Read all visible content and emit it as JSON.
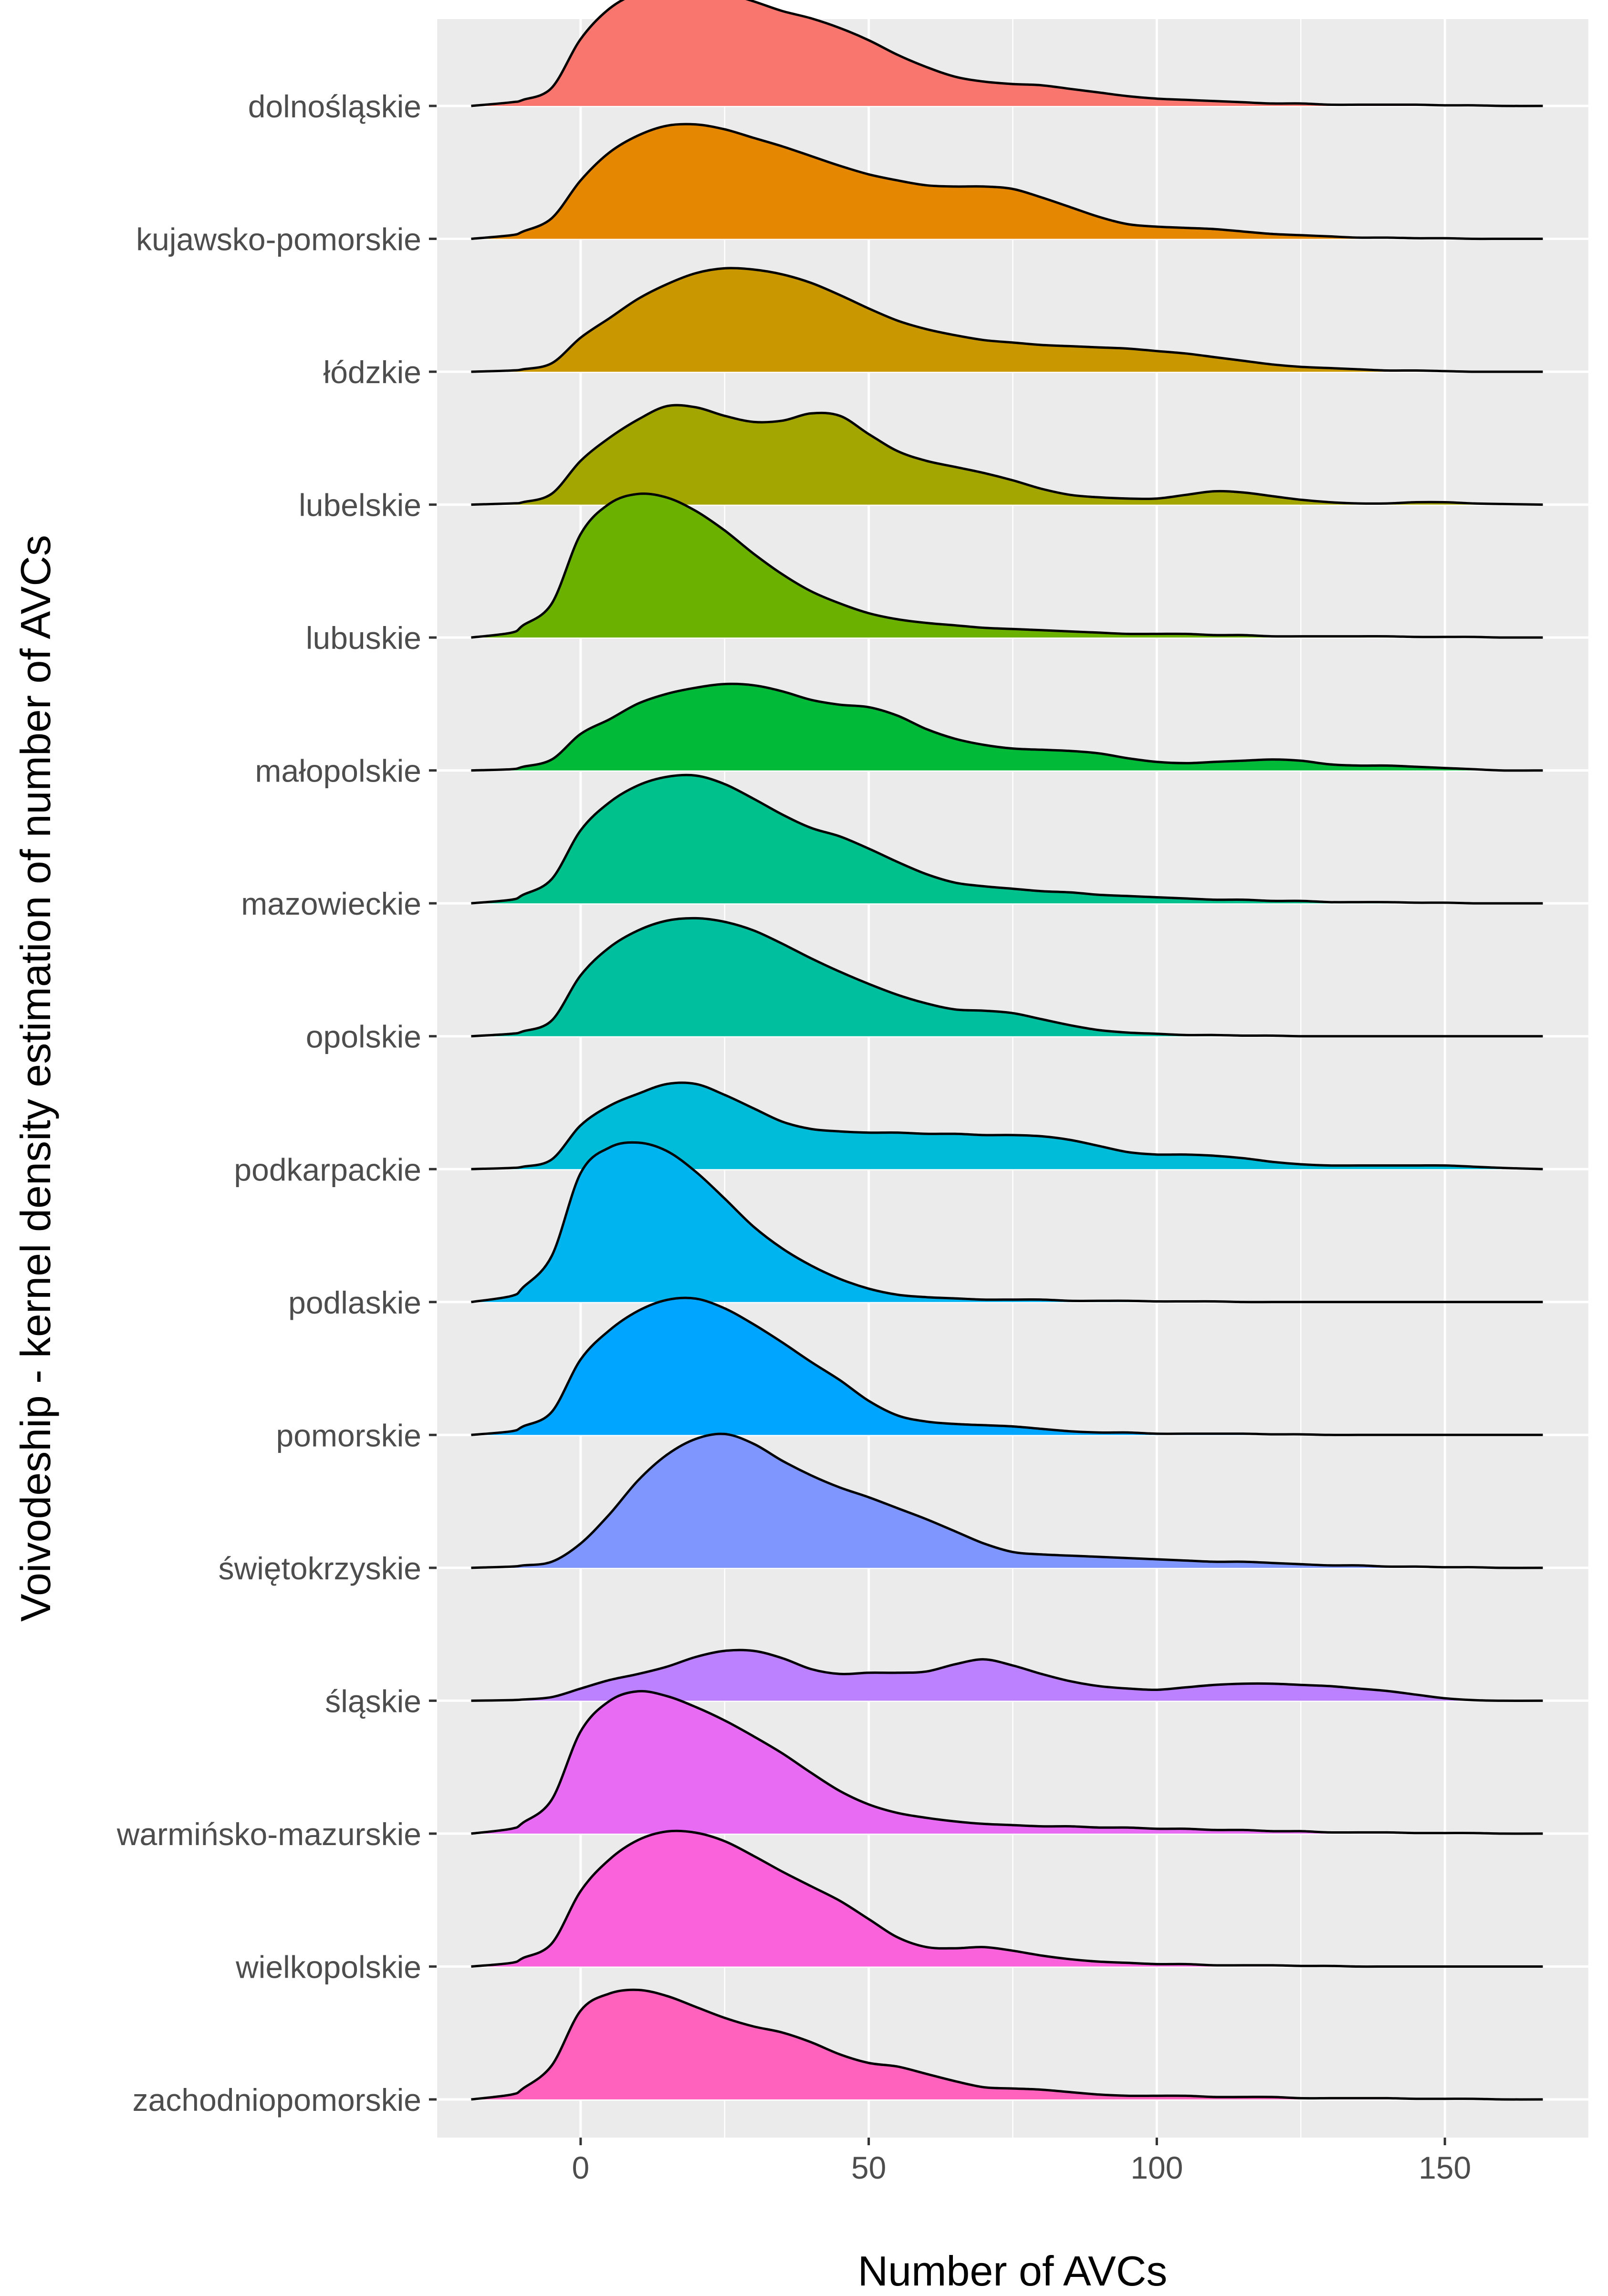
{
  "chart_data": {
    "type": "ridgeline",
    "title": "",
    "xlabel": "Number of AVCs",
    "ylabel": "Voivodeship - kernel density estimation of number of AVCs",
    "xlim": [
      -25,
      175
    ],
    "x_ticks": [
      0,
      50,
      100,
      150
    ],
    "x_minor_ticks": [
      -25,
      25,
      75,
      125,
      175
    ],
    "x_tick_labels": [
      "0",
      "50",
      "100",
      "150"
    ],
    "grid": true,
    "legend": "none",
    "x_grid": [
      -19,
      -12,
      -10,
      -5,
      0,
      5,
      10,
      15,
      20,
      25,
      30,
      35,
      40,
      45,
      50,
      55,
      60,
      65,
      70,
      75,
      80,
      85,
      90,
      95,
      100,
      105,
      110,
      115,
      120,
      125,
      130,
      135,
      140,
      145,
      150,
      155,
      160,
      167
    ],
    "series": [
      {
        "name": "dolnośląskie",
        "color": "#F8766D",
        "density": [
          0,
          0.03,
          0.05,
          0.15,
          0.55,
          0.8,
          0.93,
          0.99,
          0.98,
          0.93,
          0.86,
          0.78,
          0.72,
          0.64,
          0.54,
          0.42,
          0.32,
          0.24,
          0.2,
          0.18,
          0.17,
          0.14,
          0.11,
          0.08,
          0.06,
          0.05,
          0.04,
          0.03,
          0.02,
          0.02,
          0.01,
          0.01,
          0.01,
          0.01,
          0.005,
          0.005,
          0,
          0
        ]
      },
      {
        "name": "kujawsko-pomorskie",
        "color": "#E58700",
        "density": [
          0,
          0.03,
          0.06,
          0.17,
          0.48,
          0.71,
          0.85,
          0.93,
          0.94,
          0.9,
          0.83,
          0.76,
          0.68,
          0.6,
          0.53,
          0.48,
          0.44,
          0.43,
          0.43,
          0.41,
          0.34,
          0.26,
          0.18,
          0.12,
          0.1,
          0.09,
          0.08,
          0.06,
          0.04,
          0.03,
          0.02,
          0.01,
          0.01,
          0.005,
          0.005,
          0,
          0,
          0
        ]
      },
      {
        "name": "łódzkie",
        "color": "#C99800",
        "density": [
          0,
          0.01,
          0.02,
          0.07,
          0.28,
          0.44,
          0.6,
          0.72,
          0.81,
          0.85,
          0.84,
          0.8,
          0.73,
          0.63,
          0.52,
          0.42,
          0.35,
          0.3,
          0.26,
          0.24,
          0.22,
          0.21,
          0.2,
          0.19,
          0.17,
          0.15,
          0.12,
          0.09,
          0.06,
          0.04,
          0.03,
          0.02,
          0.01,
          0.01,
          0.005,
          0,
          0,
          0
        ]
      },
      {
        "name": "lubelskie",
        "color": "#A3A500",
        "density": [
          0,
          0.01,
          0.02,
          0.09,
          0.36,
          0.55,
          0.7,
          0.81,
          0.8,
          0.73,
          0.68,
          0.69,
          0.75,
          0.73,
          0.58,
          0.44,
          0.36,
          0.31,
          0.26,
          0.2,
          0.13,
          0.08,
          0.06,
          0.05,
          0.05,
          0.08,
          0.11,
          0.1,
          0.07,
          0.04,
          0.02,
          0.01,
          0.01,
          0.02,
          0.02,
          0.01,
          0.005,
          0
        ]
      },
      {
        "name": "lubuskie",
        "color": "#6BB100",
        "density": [
          0,
          0.04,
          0.1,
          0.28,
          0.85,
          1.1,
          1.18,
          1.15,
          1.04,
          0.88,
          0.69,
          0.52,
          0.38,
          0.28,
          0.2,
          0.15,
          0.12,
          0.1,
          0.08,
          0.07,
          0.06,
          0.05,
          0.04,
          0.03,
          0.03,
          0.03,
          0.02,
          0.02,
          0.01,
          0.01,
          0.01,
          0.01,
          0.01,
          0.005,
          0.005,
          0.005,
          0,
          0
        ]
      },
      {
        "name": "małopolskie",
        "color": "#00BA38",
        "density": [
          0,
          0.01,
          0.03,
          0.09,
          0.3,
          0.42,
          0.55,
          0.63,
          0.68,
          0.71,
          0.7,
          0.65,
          0.58,
          0.54,
          0.52,
          0.45,
          0.34,
          0.26,
          0.21,
          0.18,
          0.17,
          0.16,
          0.14,
          0.1,
          0.07,
          0.06,
          0.07,
          0.08,
          0.09,
          0.08,
          0.05,
          0.04,
          0.04,
          0.03,
          0.02,
          0.01,
          0,
          0
        ]
      },
      {
        "name": "mazowieckie",
        "color": "#00C08B",
        "density": [
          0,
          0.03,
          0.07,
          0.2,
          0.6,
          0.83,
          0.97,
          1.04,
          1.05,
          0.98,
          0.86,
          0.73,
          0.62,
          0.55,
          0.45,
          0.34,
          0.24,
          0.17,
          0.14,
          0.12,
          0.1,
          0.09,
          0.07,
          0.06,
          0.05,
          0.04,
          0.03,
          0.03,
          0.02,
          0.02,
          0.01,
          0.01,
          0.01,
          0.005,
          0.005,
          0,
          0,
          0
        ]
      },
      {
        "name": "opolskie",
        "color": "#00BF9F",
        "density": [
          0,
          0.02,
          0.04,
          0.13,
          0.5,
          0.73,
          0.87,
          0.95,
          0.97,
          0.94,
          0.87,
          0.76,
          0.64,
          0.53,
          0.43,
          0.34,
          0.27,
          0.22,
          0.21,
          0.19,
          0.14,
          0.09,
          0.05,
          0.03,
          0.02,
          0.01,
          0.01,
          0.005,
          0.005,
          0,
          0,
          0,
          0,
          0,
          0,
          0,
          0,
          0
        ]
      },
      {
        "name": "podkarpackie",
        "color": "#00BCD8",
        "density": [
          0,
          0.01,
          0.02,
          0.08,
          0.36,
          0.52,
          0.62,
          0.7,
          0.7,
          0.61,
          0.5,
          0.39,
          0.33,
          0.31,
          0.3,
          0.3,
          0.29,
          0.29,
          0.28,
          0.28,
          0.27,
          0.24,
          0.19,
          0.14,
          0.12,
          0.12,
          0.11,
          0.09,
          0.06,
          0.04,
          0.03,
          0.03,
          0.03,
          0.03,
          0.03,
          0.02,
          0.01,
          0
        ]
      },
      {
        "name": "podlaskie",
        "color": "#00B4F0",
        "density": [
          0,
          0.05,
          0.12,
          0.38,
          1.06,
          1.27,
          1.31,
          1.24,
          1.07,
          0.85,
          0.62,
          0.44,
          0.3,
          0.19,
          0.11,
          0.06,
          0.04,
          0.03,
          0.02,
          0.02,
          0.02,
          0.01,
          0.01,
          0.01,
          0.005,
          0.005,
          0.005,
          0,
          0,
          0,
          0,
          0,
          0,
          0,
          0,
          0,
          0,
          0
        ]
      },
      {
        "name": "pomorskie",
        "color": "#00A5FF",
        "density": [
          0,
          0.03,
          0.07,
          0.19,
          0.62,
          0.86,
          1.02,
          1.11,
          1.12,
          1.04,
          0.91,
          0.76,
          0.6,
          0.45,
          0.28,
          0.16,
          0.11,
          0.09,
          0.08,
          0.07,
          0.05,
          0.03,
          0.02,
          0.02,
          0.01,
          0.01,
          0.01,
          0.01,
          0.005,
          0.005,
          0,
          0,
          0,
          0,
          0,
          0,
          0,
          0
        ]
      },
      {
        "name": "świętokrzyskie",
        "color": "#7F96FF",
        "density": [
          0,
          0.01,
          0.02,
          0.05,
          0.2,
          0.44,
          0.72,
          0.93,
          1.06,
          1.1,
          1.02,
          0.88,
          0.76,
          0.66,
          0.58,
          0.49,
          0.4,
          0.3,
          0.2,
          0.13,
          0.11,
          0.1,
          0.09,
          0.08,
          0.07,
          0.06,
          0.05,
          0.05,
          0.04,
          0.03,
          0.02,
          0.02,
          0.01,
          0.01,
          0.005,
          0.005,
          0,
          0
        ]
      },
      {
        "name": "śląskie",
        "color": "#BC81FF",
        "density": [
          0,
          0.005,
          0.01,
          0.03,
          0.1,
          0.17,
          0.22,
          0.28,
          0.36,
          0.41,
          0.41,
          0.35,
          0.26,
          0.22,
          0.23,
          0.23,
          0.24,
          0.3,
          0.34,
          0.29,
          0.22,
          0.16,
          0.12,
          0.1,
          0.09,
          0.11,
          0.13,
          0.14,
          0.14,
          0.13,
          0.12,
          0.1,
          0.08,
          0.05,
          0.02,
          0.005,
          0,
          0
        ]
      },
      {
        "name": "warmińsko-mazurskie",
        "color": "#E76BF3",
        "density": [
          0,
          0.04,
          0.09,
          0.28,
          0.84,
          1.09,
          1.17,
          1.13,
          1.04,
          0.93,
          0.8,
          0.66,
          0.5,
          0.35,
          0.24,
          0.17,
          0.13,
          0.1,
          0.08,
          0.07,
          0.06,
          0.06,
          0.05,
          0.05,
          0.04,
          0.04,
          0.03,
          0.03,
          0.02,
          0.02,
          0.01,
          0.01,
          0.01,
          0.005,
          0.005,
          0.005,
          0,
          0
        ]
      },
      {
        "name": "wielkopolskie",
        "color": "#FA62DB",
        "density": [
          0,
          0.03,
          0.07,
          0.19,
          0.62,
          0.88,
          1.04,
          1.11,
          1.1,
          1.03,
          0.91,
          0.78,
          0.66,
          0.54,
          0.39,
          0.24,
          0.16,
          0.15,
          0.16,
          0.13,
          0.09,
          0.06,
          0.04,
          0.03,
          0.02,
          0.02,
          0.01,
          0.01,
          0.01,
          0.005,
          0.005,
          0,
          0,
          0,
          0,
          0,
          0,
          0
        ]
      },
      {
        "name": "zachodniopomorskie",
        "color": "#FF62BC",
        "density": [
          0,
          0.04,
          0.09,
          0.28,
          0.73,
          0.87,
          0.9,
          0.85,
          0.76,
          0.67,
          0.6,
          0.55,
          0.47,
          0.37,
          0.3,
          0.27,
          0.21,
          0.15,
          0.1,
          0.09,
          0.08,
          0.06,
          0.04,
          0.03,
          0.03,
          0.03,
          0.02,
          0.02,
          0.02,
          0.01,
          0.01,
          0.01,
          0.01,
          0.005,
          0.005,
          0.005,
          0,
          0
        ]
      }
    ]
  }
}
